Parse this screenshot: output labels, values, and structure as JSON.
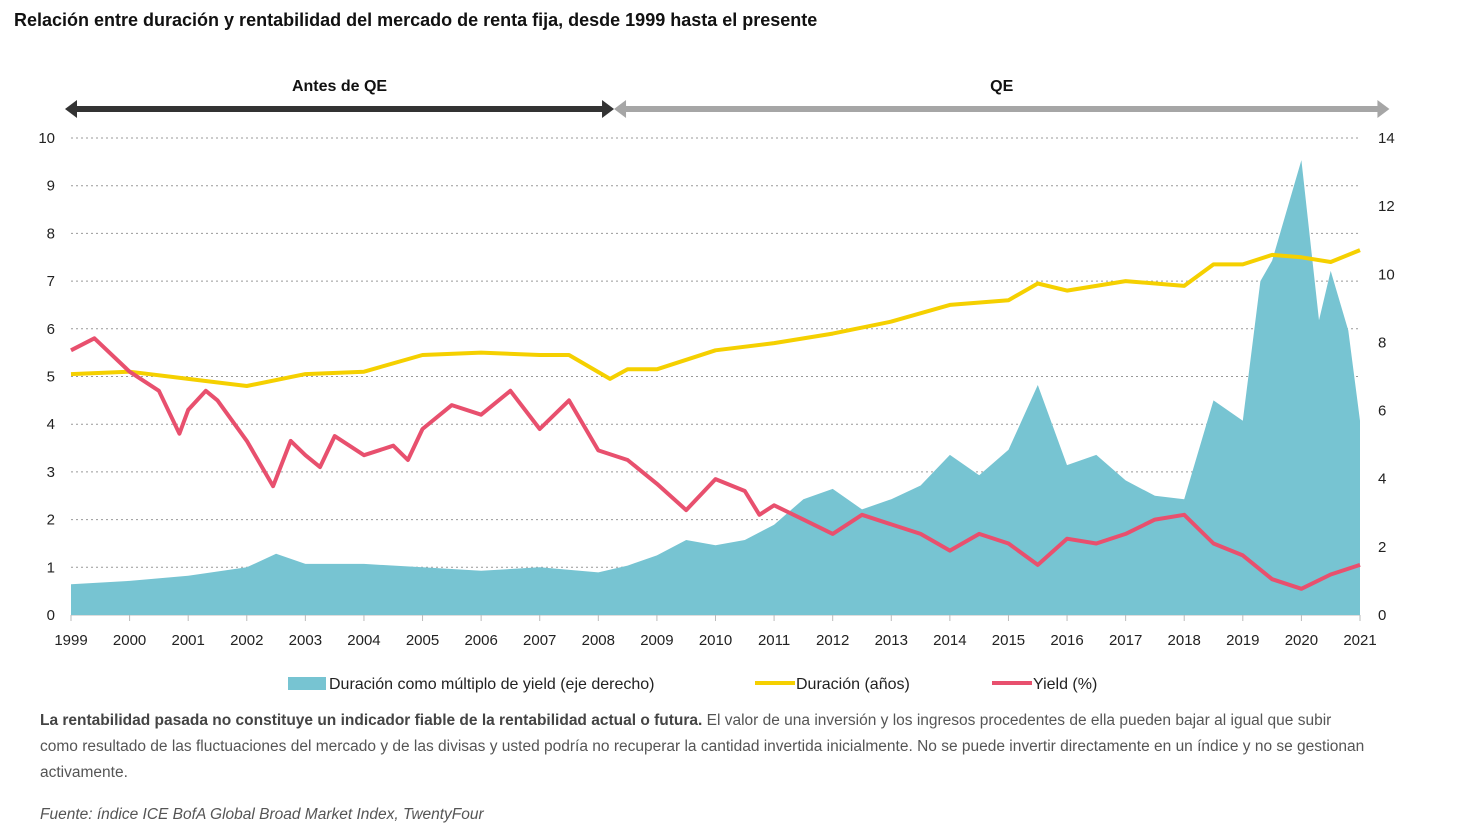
{
  "title": "Relación entre duración  y rentabilidad del mercado de renta fija, desde 1999 hasta el presente",
  "phases": [
    {
      "label": "Antes de QE",
      "from": 1999,
      "to": 2008.2,
      "color": "#333333"
    },
    {
      "label": "QE",
      "from": 2008.2,
      "to": 2021.4,
      "color": "#a6a6a6"
    }
  ],
  "chart_data": {
    "type": "line",
    "title": "Relación entre duración  y rentabilidad del mercado de renta fija, desde 1999 hasta el presente",
    "xlim": [
      1999,
      2021
    ],
    "x_ticks": [
      "1999",
      "2000",
      "2001",
      "2002",
      "2003",
      "2004",
      "2005",
      "2006",
      "2007",
      "2008",
      "2009",
      "2010",
      "2011",
      "2012",
      "2013",
      "2014",
      "2015",
      "2016",
      "2017",
      "2018",
      "2019",
      "2020",
      "2021"
    ],
    "ylim_left": [
      0,
      10
    ],
    "y_ticks_left": [
      "0",
      "1",
      "2",
      "3",
      "4",
      "5",
      "6",
      "7",
      "8",
      "9",
      "10"
    ],
    "ylim_right": [
      0,
      14
    ],
    "y_ticks_right": [
      "0",
      "2",
      "4",
      "6",
      "8",
      "10",
      "12",
      "14"
    ],
    "grid": "horizontal dotted",
    "legend_position": "bottom",
    "series": [
      {
        "name": "Duración como múltiplo de yield (eje derecho)",
        "type": "area",
        "axis": "right",
        "color": "#77c4d2",
        "x": [
          1999,
          2000,
          2001,
          2002,
          2002.5,
          2003,
          2004,
          2005,
          2006,
          2007,
          2008,
          2008.5,
          2009,
          2009.5,
          2010,
          2010.5,
          2011,
          2011.5,
          2012,
          2012.5,
          2013,
          2013.5,
          2014,
          2014.5,
          2015,
          2015.5,
          2016,
          2016.5,
          2017,
          2017.5,
          2018,
          2018.5,
          2019,
          2019.3,
          2019.5,
          2020,
          2020.3,
          2020.5,
          2020.8,
          2021
        ],
        "y": [
          0.9,
          1.0,
          1.15,
          1.4,
          1.8,
          1.5,
          1.5,
          1.4,
          1.3,
          1.4,
          1.25,
          1.45,
          1.75,
          2.2,
          2.05,
          2.2,
          2.65,
          3.4,
          3.7,
          3.1,
          3.4,
          3.8,
          4.7,
          4.1,
          4.85,
          6.75,
          4.4,
          4.7,
          3.95,
          3.5,
          3.4,
          6.3,
          5.7,
          9.8,
          10.4,
          13.35,
          8.65,
          10.1,
          8.35,
          5.7
        ]
      },
      {
        "name": "Duración (años)",
        "type": "line",
        "axis": "left",
        "color": "#f5d000",
        "x": [
          1999,
          2000,
          2001,
          2002,
          2003,
          2004,
          2005,
          2006,
          2007,
          2007.5,
          2008.2,
          2008.5,
          2009,
          2010,
          2011,
          2012,
          2013,
          2014,
          2015,
          2015.5,
          2016,
          2017,
          2018,
          2018.5,
          2019,
          2019.5,
          2020,
          2020.5,
          2021
        ],
        "y": [
          5.05,
          5.1,
          4.95,
          4.8,
          5.05,
          5.1,
          5.45,
          5.5,
          5.45,
          5.45,
          4.95,
          5.15,
          5.15,
          5.55,
          5.7,
          5.9,
          6.15,
          6.5,
          6.6,
          6.95,
          6.8,
          7.0,
          6.9,
          7.35,
          7.35,
          7.55,
          7.5,
          7.4,
          7.65
        ]
      },
      {
        "name": "Yield (%)",
        "type": "line",
        "axis": "left",
        "color": "#e8506e",
        "x": [
          1999,
          1999.4,
          2000,
          2000.5,
          2000.85,
          2001,
          2001.3,
          2001.5,
          2002,
          2002.45,
          2002.75,
          2003,
          2003.25,
          2003.5,
          2004,
          2004.5,
          2004.75,
          2005,
          2005.5,
          2006,
          2006.5,
          2007,
          2007.5,
          2008,
          2008.5,
          2009,
          2009.5,
          2010,
          2010.5,
          2010.75,
          2011,
          2011.5,
          2012,
          2012.5,
          2013,
          2013.5,
          2014,
          2014.5,
          2015,
          2015.5,
          2016,
          2016.5,
          2017,
          2017.5,
          2018,
          2018.5,
          2019,
          2019.5,
          2020,
          2020.5,
          2021
        ],
        "y": [
          5.55,
          5.8,
          5.1,
          4.7,
          3.8,
          4.3,
          4.7,
          4.5,
          3.65,
          2.7,
          3.65,
          3.35,
          3.1,
          3.75,
          3.35,
          3.55,
          3.25,
          3.9,
          4.4,
          4.2,
          4.7,
          3.9,
          4.5,
          3.45,
          3.25,
          2.75,
          2.2,
          2.85,
          2.6,
          2.1,
          2.3,
          2.0,
          1.7,
          2.1,
          1.9,
          1.7,
          1.35,
          1.7,
          1.5,
          1.05,
          1.6,
          1.5,
          1.7,
          2.0,
          2.1,
          1.5,
          1.25,
          0.75,
          0.55,
          0.85,
          1.05
        ]
      }
    ]
  },
  "disclaimer": {
    "bold": "La rentabilidad pasada no constituye un indicador fiable de la rentabilidad actual o futura.",
    "text": " El valor de una inversión y los ingresos procedentes de ella pueden bajar al igual que subir como resultado de las fluctuaciones del mercado y de las divisas y usted podría no recuperar  la cantidad invertida inicialmente. No se puede invertir directamente en un índice y no se gestionan activamente."
  },
  "source": "Fuente: índice ICE BofA Global Broad Market Index, TwentyFour"
}
